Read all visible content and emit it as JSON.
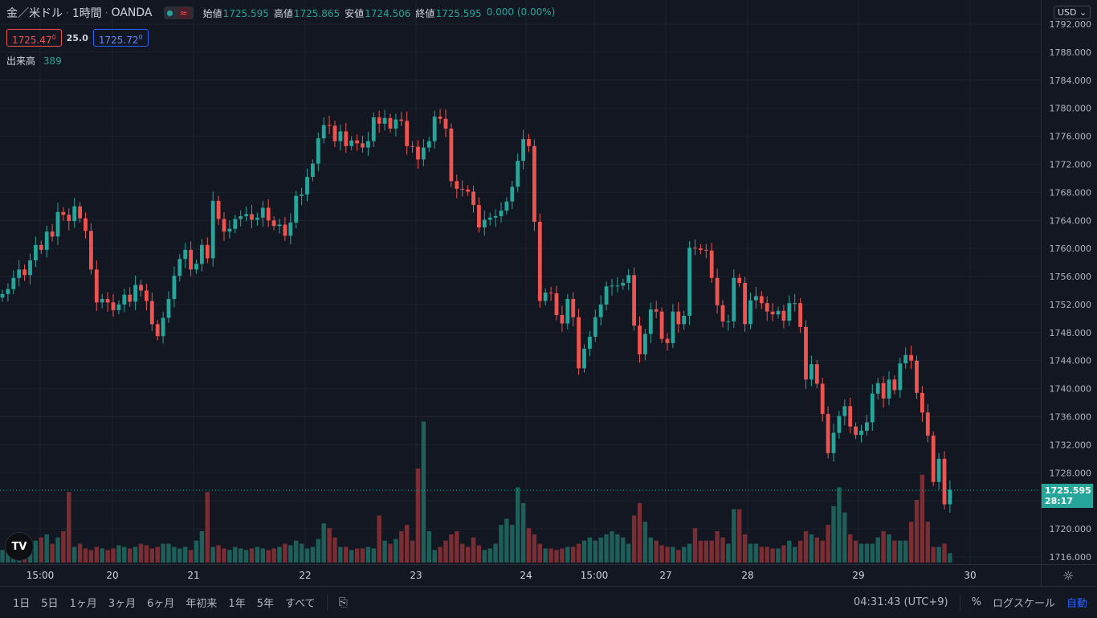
{
  "legend": {
    "symbol": "金／米ドル",
    "interval": "1時間",
    "source": "OANDA",
    "approx_icon": "≈",
    "open_label": "始値",
    "open": "1725.595",
    "high_label": "高値",
    "high": "1725.865",
    "low_label": "安値",
    "low": "1724.506",
    "close_label": "終値",
    "close": "1725.595",
    "change": "0.000 (0.00%)"
  },
  "bid_ask": {
    "bid": "1725.47",
    "bid_sup": "0",
    "spread": "25.0",
    "ask": "1725.72",
    "ask_sup": "0"
  },
  "volume_legend": {
    "label": "出来高",
    "value": "389"
  },
  "logo": "TV",
  "currency": "USD",
  "currency_icon": "chevron-down-icon",
  "last_price": {
    "price": "1725.595",
    "countdown": "28:17"
  },
  "colors": {
    "up": "#26a69a",
    "down": "#ef5350",
    "background": "#131722",
    "grid": "#1e222d"
  },
  "chart_data": {
    "type": "candlestick",
    "y_ticks": [
      "1716.000",
      "1720.000",
      "1724.000",
      "1728.000",
      "1732.000",
      "1736.000",
      "1740.000",
      "1744.000",
      "1748.000",
      "1752.000",
      "1756.000",
      "1760.000",
      "1764.000",
      "1768.000",
      "1772.000",
      "1776.000",
      "1780.000",
      "1784.000",
      "1788.000",
      "1792.000"
    ],
    "x_ticks": [
      "15:00",
      "20",
      "21",
      "22",
      "23",
      "24",
      "15:00",
      "27",
      "28",
      "29",
      "30"
    ],
    "ylim": [
      1716,
      1792
    ],
    "closes": [
      1753.5,
      1754.2,
      1755.8,
      1757.0,
      1756.2,
      1758.3,
      1760.5,
      1759.8,
      1762.4,
      1761.7,
      1765.2,
      1764.8,
      1763.9,
      1766.0,
      1764.3,
      1762.5,
      1757.0,
      1752.3,
      1752.8,
      1752.3,
      1751.2,
      1752.0,
      1753.4,
      1752.4,
      1754.8,
      1754.0,
      1752.5,
      1749.2,
      1747.5,
      1750.1,
      1752.8,
      1756.1,
      1758.5,
      1759.8,
      1757.0,
      1757.8,
      1760.5,
      1758.6,
      1766.8,
      1764.2,
      1762.4,
      1762.8,
      1764.2,
      1764.6,
      1764.9,
      1764.1,
      1764.4,
      1765.8,
      1764.0,
      1763.2,
      1763.4,
      1761.8,
      1763.7,
      1767.5,
      1767.7,
      1770.2,
      1772.1,
      1775.7,
      1777.6,
      1777.5,
      1775.3,
      1776.7,
      1774.6,
      1775.4,
      1775.0,
      1774.4,
      1775.3,
      1778.7,
      1777.8,
      1778.6,
      1777.1,
      1778.4,
      1778.2,
      1774.6,
      1774.5,
      1772.7,
      1774.4,
      1775.3,
      1778.8,
      1778.5,
      1777.1,
      1769.6,
      1768.5,
      1768.4,
      1768.1,
      1766.2,
      1763.0,
      1764.1,
      1764.4,
      1764.6,
      1765.4,
      1766.7,
      1768.8,
      1772.5,
      1775.6,
      1774.6,
      1763.8,
      1752.5,
      1753.7,
      1753.6,
      1750.5,
      1749.3,
      1752.8,
      1750.2,
      1742.9,
      1745.7,
      1747.4,
      1750.2,
      1752.0,
      1754.6,
      1754.7,
      1754.7,
      1755.1,
      1756.2,
      1749.0,
      1744.9,
      1747.8,
      1751.3,
      1751.0,
      1747.1,
      1746.5,
      1751.0,
      1749.2,
      1750.4,
      1760.1,
      1760.0,
      1759.8,
      1759.7,
      1755.8,
      1751.9,
      1749.6,
      1749.6,
      1755.8,
      1755.1,
      1749.2,
      1752.6,
      1753.2,
      1752.2,
      1751.0,
      1750.6,
      1751.1,
      1749.7,
      1752.2,
      1752.2,
      1748.8,
      1741.3,
      1743.5,
      1740.7,
      1736.4,
      1730.8,
      1733.7,
      1736.1,
      1737.5,
      1734.6,
      1733.4,
      1734.0,
      1735.2,
      1739.3,
      1740.8,
      1738.6,
      1741.3,
      1739.8,
      1743.6,
      1744.8,
      1744.0,
      1739.4,
      1736.6,
      1733.3,
      1726.7,
      1730.0,
      1723.5,
      1725.6
    ],
    "volume_max_label": "",
    "volumes": [
      8,
      9,
      10,
      12,
      11,
      10,
      14,
      16,
      18,
      12,
      16,
      20,
      45,
      10,
      12,
      9,
      8,
      10,
      9,
      8,
      9,
      11,
      10,
      9,
      10,
      12,
      11,
      9,
      10,
      12,
      12,
      10,
      9,
      10,
      8,
      14,
      20,
      45,
      10,
      11,
      9,
      8,
      10,
      9,
      8,
      9,
      10,
      9,
      8,
      9,
      10,
      12,
      11,
      14,
      12,
      9,
      10,
      15,
      25,
      22,
      16,
      10,
      10,
      8,
      9,
      9,
      10,
      9,
      30,
      14,
      12,
      15,
      20,
      24,
      14,
      60,
      90,
      20,
      8,
      10,
      14,
      18,
      20,
      12,
      10,
      16,
      11,
      8,
      9,
      12,
      24,
      28,
      24,
      48,
      38,
      22,
      18,
      12,
      9,
      9,
      8,
      9,
      10,
      10,
      12,
      14,
      16,
      14,
      16,
      18,
      20,
      18,
      16,
      12,
      30,
      38,
      26,
      16,
      14,
      11,
      10,
      10,
      8,
      10,
      12,
      22,
      14,
      14,
      14,
      20,
      16,
      12,
      34,
      34,
      18,
      12,
      12,
      10,
      10,
      9,
      9,
      11,
      14,
      10,
      14,
      20,
      18,
      16,
      14,
      24,
      36,
      48,
      32,
      18,
      14,
      12,
      12,
      12,
      16,
      20,
      18,
      14,
      14,
      14,
      26,
      40,
      56,
      26,
      10,
      10,
      12,
      6
    ]
  },
  "time_axis_icon": "gear-icon",
  "toolbar": {
    "ranges": [
      "1日",
      "5日",
      "1ヶ月",
      "3ヶ月",
      "6ヶ月",
      "年初来",
      "1年",
      "5年",
      "すべて"
    ],
    "compare_icon": "date-range-icon",
    "time": "04:31:43 (UTC+9)",
    "percent": "%",
    "log": "ログスケール",
    "auto": "自動"
  }
}
